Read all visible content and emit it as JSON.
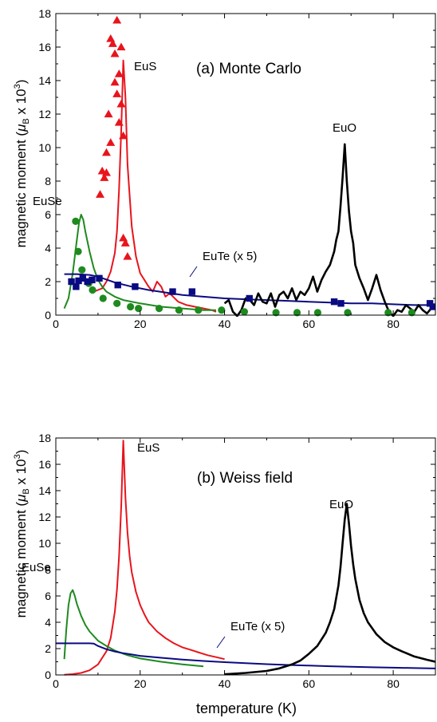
{
  "figure": {
    "x_axis_label": "temperature (K)",
    "y_axis_label_main": "magnetic moment (",
    "y_axis_label_mu": "μ",
    "y_axis_label_sub": "B",
    "y_axis_label_tail": " x 10",
    "y_axis_label_sup": "3",
    "y_axis_label_close": ")"
  },
  "colors": {
    "EuO": "#000000",
    "EuS": "#e8141c",
    "EuSe": "#1e8a1e",
    "EuTe": "#0a0a82"
  },
  "chart_data": [
    {
      "type": "line",
      "title": "(a) Monte Carlo",
      "xlabel": "",
      "ylabel": "magnetic moment (μB x 10^3)",
      "xlim": [
        0,
        90
      ],
      "ylim": [
        0,
        18
      ],
      "xticks": [
        0,
        20,
        40,
        60,
        80
      ],
      "yticks": [
        0,
        2,
        4,
        6,
        8,
        10,
        12,
        14,
        16,
        18
      ],
      "labels": [
        "EuS",
        "EuO",
        "EuSe",
        "EuTe (x 5)"
      ],
      "series": [
        {
          "name": "EuS",
          "style": "line",
          "color_key": "EuS",
          "x": [
            9,
            10,
            11,
            12,
            13,
            14,
            14.5,
            15,
            15.5,
            16,
            16.5,
            17,
            18,
            19,
            20,
            22,
            23,
            24,
            25,
            26,
            27,
            29,
            31,
            33,
            35,
            37,
            38
          ],
          "y": [
            1.4,
            1.5,
            1.6,
            2.0,
            2.6,
            3.7,
            5.0,
            7.5,
            11.0,
            15.2,
            13.0,
            9.0,
            5.3,
            3.5,
            2.5,
            1.7,
            1.4,
            2.0,
            1.7,
            1.1,
            1.3,
            0.8,
            0.6,
            0.5,
            0.4,
            0.3,
            0.2
          ]
        },
        {
          "name": "EuS",
          "style": "marker-triangle",
          "color_key": "EuS",
          "x": [
            10.5,
            11,
            11.5,
            12,
            12,
            12.5,
            13,
            13,
            13.5,
            14,
            14,
            14.5,
            14.5,
            15,
            15,
            15.5,
            15.5,
            16,
            16,
            16.5,
            17
          ],
          "y": [
            7.2,
            8.6,
            8.2,
            8.5,
            9.7,
            12.0,
            10.3,
            16.5,
            16.2,
            13.9,
            15.6,
            13.2,
            17.6,
            11.5,
            14.4,
            12.6,
            16.0,
            10.7,
            4.6,
            4.3,
            3.5
          ]
        },
        {
          "name": "EuSe",
          "style": "line",
          "color_key": "EuSe",
          "x": [
            2,
            3,
            4,
            5,
            5.5,
            6,
            6.5,
            7,
            8,
            9,
            10,
            11,
            12,
            14,
            16,
            20,
            25,
            30,
            35,
            38
          ],
          "y": [
            0.4,
            1.0,
            2.5,
            4.5,
            5.5,
            6.0,
            5.7,
            5.0,
            3.8,
            2.8,
            2.1,
            1.7,
            1.4,
            1.1,
            0.9,
            0.7,
            0.5,
            0.4,
            0.3,
            0.3
          ]
        },
        {
          "name": "EuSe",
          "style": "marker-circle",
          "color_key": "EuSe",
          "x": [
            4.7,
            5.3,
            6.2,
            7.8,
            8.7,
            11.2,
            14.5,
            17.7,
            19.6,
            24.5,
            29.2,
            33.8,
            39.3,
            44.7,
            52.2,
            57.2,
            62.1,
            69.2,
            78.8,
            84.4
          ],
          "y": [
            5.6,
            3.8,
            2.7,
            1.9,
            1.5,
            1.0,
            0.7,
            0.5,
            0.4,
            0.4,
            0.3,
            0.3,
            0.3,
            0.2,
            0.15,
            0.15,
            0.15,
            0.15,
            0.15,
            0.15
          ]
        },
        {
          "name": "EuTe (x 5)",
          "style": "line",
          "color_key": "EuTe",
          "x": [
            2,
            5,
            8,
            10,
            14,
            18,
            22,
            26,
            30,
            35,
            40,
            45,
            50,
            55,
            60,
            65,
            70,
            75,
            80,
            85,
            90
          ],
          "y": [
            2.45,
            2.45,
            2.4,
            2.3,
            1.95,
            1.7,
            1.5,
            1.35,
            1.2,
            1.1,
            1.0,
            0.95,
            0.9,
            0.85,
            0.8,
            0.75,
            0.7,
            0.7,
            0.65,
            0.6,
            0.6
          ]
        },
        {
          "name": "EuTe (x 5)",
          "style": "marker-square",
          "color_key": "EuTe",
          "x": [
            3.7,
            4.8,
            5.4,
            6.4,
            7.5,
            8.6,
            10.3,
            14.7,
            18.8,
            27.7,
            32.3,
            45.9,
            66.0,
            67.6,
            88.7,
            89.4
          ],
          "y": [
            2.0,
            1.7,
            2.05,
            2.2,
            2.0,
            2.1,
            2.2,
            1.8,
            1.7,
            1.4,
            1.4,
            1.0,
            0.8,
            0.7,
            0.7,
            0.5
          ]
        },
        {
          "name": "EuO",
          "style": "line",
          "color_key": "EuO",
          "x": [
            40,
            41,
            42,
            43,
            44,
            45,
            46,
            47,
            48,
            49,
            50,
            51,
            52,
            53,
            54,
            55,
            56,
            57,
            58,
            59,
            60,
            61,
            62,
            63,
            64,
            65,
            66,
            66.5,
            67,
            67.5,
            68,
            68.5,
            69,
            69.5,
            70,
            70.5,
            71,
            72,
            73,
            74,
            75,
            76,
            77,
            78,
            79,
            80,
            81,
            82,
            83,
            84,
            85,
            86,
            87,
            88,
            89,
            90
          ],
          "y": [
            0.7,
            0.9,
            0.2,
            -0.05,
            0.3,
            1.0,
            0.9,
            0.6,
            1.3,
            0.8,
            0.7,
            1.3,
            0.5,
            1.2,
            1.4,
            1.0,
            1.6,
            0.9,
            1.4,
            1.2,
            1.6,
            2.3,
            1.4,
            2.1,
            2.6,
            3.0,
            3.8,
            4.5,
            5.0,
            6.5,
            8.2,
            10.2,
            8.0,
            6.2,
            5.0,
            4.3,
            3.0,
            2.2,
            1.6,
            0.9,
            1.6,
            2.4,
            1.5,
            0.8,
            0.2,
            -0.05,
            0.3,
            0.2,
            0.6,
            0.4,
            0.2,
            0.6,
            0.3,
            0.1,
            0.4,
            0.6
          ]
        }
      ]
    },
    {
      "type": "line",
      "title": "(b) Weiss field",
      "xlabel": "temperature (K)",
      "ylabel": "magnetic moment (μB x 10^3)",
      "xlim": [
        0,
        90
      ],
      "ylim": [
        0,
        18
      ],
      "xticks": [
        0,
        20,
        40,
        60,
        80
      ],
      "yticks": [
        0,
        2,
        4,
        6,
        8,
        10,
        12,
        14,
        16,
        18
      ],
      "labels": [
        "EuS",
        "EuO",
        "EuSe",
        "EuTe (x 5)"
      ],
      "series": [
        {
          "name": "EuS",
          "style": "line",
          "color_key": "EuS",
          "x": [
            2,
            4,
            6,
            8,
            10,
            12,
            13,
            14,
            14.5,
            15,
            15.5,
            16,
            16.5,
            17,
            17.5,
            18,
            19,
            20,
            21,
            22,
            24,
            26,
            28,
            30,
            32,
            34,
            36,
            38,
            40
          ],
          "y": [
            0.02,
            0.06,
            0.15,
            0.35,
            0.8,
            1.8,
            2.8,
            4.8,
            6.5,
            9.0,
            12.8,
            17.8,
            13.5,
            10.8,
            9.0,
            7.8,
            6.3,
            5.3,
            4.6,
            4.0,
            3.3,
            2.8,
            2.4,
            2.1,
            1.9,
            1.7,
            1.5,
            1.35,
            1.2
          ]
        },
        {
          "name": "EuSe",
          "style": "line",
          "color_key": "EuSe",
          "x": [
            2,
            2.5,
            3,
            3.5,
            4,
            4.5,
            5,
            6,
            7,
            8,
            10,
            12,
            14,
            17,
            20,
            25,
            30,
            35
          ],
          "y": [
            1.2,
            3.5,
            5.3,
            6.2,
            6.45,
            6.0,
            5.4,
            4.5,
            3.8,
            3.3,
            2.6,
            2.2,
            1.85,
            1.5,
            1.25,
            1.0,
            0.8,
            0.65
          ]
        },
        {
          "name": "EuTe (x 5)",
          "style": "line",
          "color_key": "EuTe",
          "x": [
            0,
            4,
            8,
            9,
            10,
            12,
            14,
            16,
            18,
            20,
            25,
            30,
            35,
            40,
            45,
            50,
            55,
            60,
            65,
            70,
            75,
            80,
            85,
            90
          ],
          "y": [
            2.4,
            2.4,
            2.4,
            2.38,
            2.2,
            1.95,
            1.78,
            1.65,
            1.55,
            1.45,
            1.3,
            1.17,
            1.06,
            0.97,
            0.89,
            0.82,
            0.76,
            0.71,
            0.66,
            0.62,
            0.58,
            0.55,
            0.52,
            0.49
          ]
        },
        {
          "name": "EuO",
          "style": "line",
          "color_key": "EuO",
          "x": [
            40,
            45,
            50,
            53,
            56,
            58,
            60,
            62,
            64,
            65,
            66,
            67,
            67.5,
            68,
            68.5,
            69,
            69.5,
            70,
            70.5,
            71,
            72,
            73,
            74,
            76,
            78,
            80,
            82,
            85,
            88,
            90
          ],
          "y": [
            0.05,
            0.15,
            0.3,
            0.5,
            0.8,
            1.1,
            1.6,
            2.2,
            3.2,
            4.0,
            5.0,
            6.8,
            8.2,
            10.0,
            11.8,
            13.0,
            11.5,
            9.8,
            8.4,
            7.3,
            5.7,
            4.7,
            4.0,
            3.1,
            2.5,
            2.1,
            1.8,
            1.4,
            1.15,
            1.0
          ]
        }
      ]
    }
  ]
}
